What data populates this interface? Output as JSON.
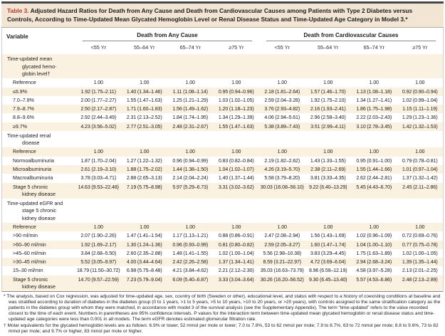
{
  "table": {
    "label": "Table 3.",
    "title": "Adjusted Hazard Ratios for Death from Any Cause and Death from Cardiovascular Causes among Patients with Type 2 Diabetes versus Controls, According to Time-Updated Mean Glycated Hemoglobin Level or Renal Disease Status and Time-Updated Age Category in Model 3.*",
    "variable_header": "Variable",
    "groups": [
      {
        "label": "Death from Any Cause",
        "cols": [
          "<55 Yr",
          "55–64 Yr",
          "65–74 Yr",
          "≥75 Yr"
        ]
      },
      {
        "label": "Death from Cardiovascular Causes",
        "cols": [
          "<55 Yr",
          "55–64 Yr",
          "65–74 Yr",
          "≥75 Yr"
        ]
      }
    ],
    "sections": [
      {
        "header": "Time-updated mean\nglycated hemo-\nglobin level†",
        "rows": [
          {
            "label": "Reference",
            "values": [
              "1.00",
              "1.00",
              "1.00",
              "1.00",
              "1.00",
              "1.00",
              "1.00",
              "1.00"
            ]
          },
          {
            "label": "≤6.9%",
            "values": [
              "1.92 (1.75–2.11)",
              "1.40 (1.34–1.46)",
              "1.11 (1.08–1.14)",
              "0.95 (0.94–0.96)",
              "2.18 (1.81–2.64)",
              "1.57 (1.46–1.70)",
              "1.13 (1.08–1.18)",
              "0.92 (0.90–0.94)"
            ]
          },
          {
            "label": "7.0–7.8%",
            "values": [
              "2.00 (1.77–2.27)",
              "1.55 (1.47–1.63)",
              "1.25 (1.21–1.29)",
              "1.03 (1.02–1.05)",
              "2.59 (2.04–3.28)",
              "1.92 (1.75–2.10)",
              "1.34 (1.27–1.41)",
              "1.02 (0.99–1.04)"
            ]
          },
          {
            "label": "7.9–8.7%",
            "values": [
              "2.50 (2.17–2.87)",
              "1.71 (1.60–1.83)",
              "1.56 (1.49–1.62)",
              "1.20 (1.18–1.23)",
              "3.76 (2.93–4.82)",
              "2.16 (1.93–2.41)",
              "1.86 (1.75–1.98)",
              "1.15 (1.11–1.19)"
            ]
          },
          {
            "label": "8.8–9.6%",
            "values": [
              "2.92 (2.44–3.49)",
              "2.31 (2.13–2.52)",
              "1.84 (1.74–1.95)",
              "1.34 (1.29–1.39)",
              "4.06 (2.94–5.61)",
              "2.96 (2.58–3.40)",
              "2.22 (2.03–2.43)",
              "1.29 (1.23–1.36)"
            ]
          },
          {
            "label": "≥9.7%",
            "values": [
              "4.23 (3.56–5.02)",
              "2.77 (2.51–3.05)",
              "2.48 (2.31–2.67)",
              "1.55 (1.47–1.63)",
              "5.38 (3.89–7.43)",
              "3.51 (2.99–4.11)",
              "3.10 (2.78–3.45)",
              "1.42 (1.32–1.53)"
            ]
          }
        ]
      },
      {
        "header": "Time-updated renal\ndisease",
        "rows": [
          {
            "label": "Reference",
            "values": [
              "1.00",
              "1.00",
              "1.00",
              "1.00",
              "1.00",
              "1.00",
              "1.00",
              "1.00"
            ]
          },
          {
            "label": "Normoalbuminuria",
            "values": [
              "1.87 (1.70–2.04)",
              "1.27 (1.22–1.32)",
              "0.96 (0.94–0.99)",
              "0.83 (0.82–0.84)",
              "2.19 (1.82–2.62)",
              "1.43 (1.33–1.55)",
              "0.95 (0.91–1.00)",
              "0.79 (0.78–0.81)"
            ]
          },
          {
            "label": "Microalbuminuria",
            "values": [
              "2.61 (2.19–3.10)",
              "1.88 (1.75–2.02)",
              "1.44 (1.38–1.50)",
              "1.04 (1.02–1.07)",
              "4.26 (3.19–5.70)",
              "2.38 (2.11–2.69)",
              "1.55 (1.44–1.66)",
              "1.01 (0.97–1.04)"
            ]
          },
          {
            "label": "Macroalbuminuria",
            "values": [
              "3.78 (3.03–4.71)",
              "2.88 (2.65–3.13)",
              "2.14 (2.04–2.24)",
              "1.40 (1.37–1.44)",
              "5.58 (3.79–8.20)",
              "3.81 (3.33–4.35)",
              "2.62 (2.44–2.81)",
              "1.37 (1.32–1.42)"
            ]
          },
          {
            "label": "Stage 5 chronic\nkidney disease",
            "values": [
              "14.63 (9.53–22.48)",
              "7.19 (5.75–8.98)",
              "5.97 (5.29–6.73)",
              "3.31 (3.02–3.62)",
              "30.03 (16.08–56.10)",
              "9.22 (6.40–13.29)",
              "5.45 (4.43–6.70)",
              "2.45 (2.11–2.86)"
            ]
          }
        ]
      },
      {
        "header": "Time-updated eGFR and\nstage 5 chronic\nkidney disease",
        "rows": [
          {
            "label": "Reference",
            "values": [
              "1.00",
              "1.00",
              "1.00",
              "1.00",
              "1.00",
              "1.00",
              "1.00",
              "1.00"
            ]
          },
          {
            "label": ">90 ml/min",
            "values": [
              "2.07 (1.90–2.26)",
              "1.47 (1.41–1.54)",
              "1.17 (1.13–1.21)",
              "0.88 (0.86–0.91)",
              "2.47 (2.08–2.94)",
              "1.56 (1.43–1.69)",
              "1.02 (0.96–1.09)",
              "0.72 (0.69–0.76)"
            ]
          },
          {
            "label": ">60–90 ml/min",
            "values": [
              "1.92 (1.69–2.17)",
              "1.30 (1.24–1.36)",
              "0.96 (0.93–0.99)",
              "0.81 (0.80–0.82)",
              "2.59 (2.05–3.27)",
              "1.60 (1.47–1.74)",
              "1.04 (1.00–1.10)",
              "0.77 (0.75–0.78)"
            ]
          },
          {
            "label": ">45–60 ml/min",
            "values": [
              "3.84 (2.68–5.50)",
              "2.60 (2.35–2.88)",
              "1.48 (1.41–1.55)",
              "1.02 (1.00–1.04)",
              "5.56 (2.98–10.38)",
              "3.83 (3.29–4.45)",
              "1.75 (1.63–1.89)",
              "1.02 (1.00–1.05)"
            ]
          },
          {
            "label": ">30–45 ml/min",
            "values": [
              "5.52 (3.05–9.97)",
              "4.00 (3.44–4.64)",
              "2.42 (2.26–2.58)",
              "1.37 (1.34–1.41)",
              "8.59 (3.21–22.97)",
              "4.72 (3.69–6.04)",
              "2.94 (2.68–3.24)",
              "1.39 (1.35–1.44)"
            ]
          },
          {
            "label": "15–30 ml/min",
            "values": [
              "18.79 (11.50–30.72)",
              "6.98 (5.75–8.48)",
              "4.21 (3.84–4.62)",
              "2.21 (2.12–2.30)",
              "35.03 (16.63–73.79)",
              "8.96 (6.59–12.19)",
              "4.58 (3.97–5.28)",
              "2.13 (2.01–2.25)"
            ]
          },
          {
            "label": "Stage 5 chronic\nkidney disease",
            "values": [
              "14.70 (9.57–22.59)",
              "7.23 (5.79–9.04)",
              "6.09 (5.40–6.87)",
              "3.33 (3.04–3.64)",
              "30.26 (16.20–56.52)",
              "9.30 (6.45–13.40)",
              "5.57 (4.53–6.86)",
              "2.48 (2.13–2.89)"
            ]
          }
        ]
      }
    ],
    "footnotes": [
      {
        "marker": "*",
        "text": "The analysis, based on Cox regression, was adjusted for time-updated age, sex, country of birth (Sweden or other), educational level, and status with respect to a history of coexisting conditions at baseline and was stratified according to duration of diabetes in the diabetes group (0 to 1 years, >1 to 5 years, >5 to 10 years, >10 to 20 years, or >20 years), with controls assigned to the same stratification category as the patients in the diabetes group with whom they were matched, in accordance with model 3 of the survival analysis (see the Supplementary Appendix). The term “time-updated” refers to the value recorded closest to the time of each event. Numbers in parentheses are 95% confidence intervals. P values for the interaction term between time-updated mean glycated hemoglobin or renal disease status and time-updated age categories were less than 0.001 in all models. The term eGFR denotes estimated glomerular filtration rate."
      },
      {
        "marker": "†",
        "text": "Molar equivalents for the glycated hemoglobin levels are as follows: 6.9% or lower, 52 mmol per mole or lower; 7.0 to 7.8%, 53 to 62 mmol per mole; 7.9 to 8.7%, 63 to 72 mmol per mole; 8.8 to 9.6%, 73 to 82 mmol per mole; and 9.7% or higher, 83 mmol per mole or higher."
      }
    ],
    "colors": {
      "accent_red": "#b93a2e",
      "title_bg": "#f3e5d4",
      "stripe_bg": "#fbf1e0",
      "top_bar": "#474747"
    }
  }
}
